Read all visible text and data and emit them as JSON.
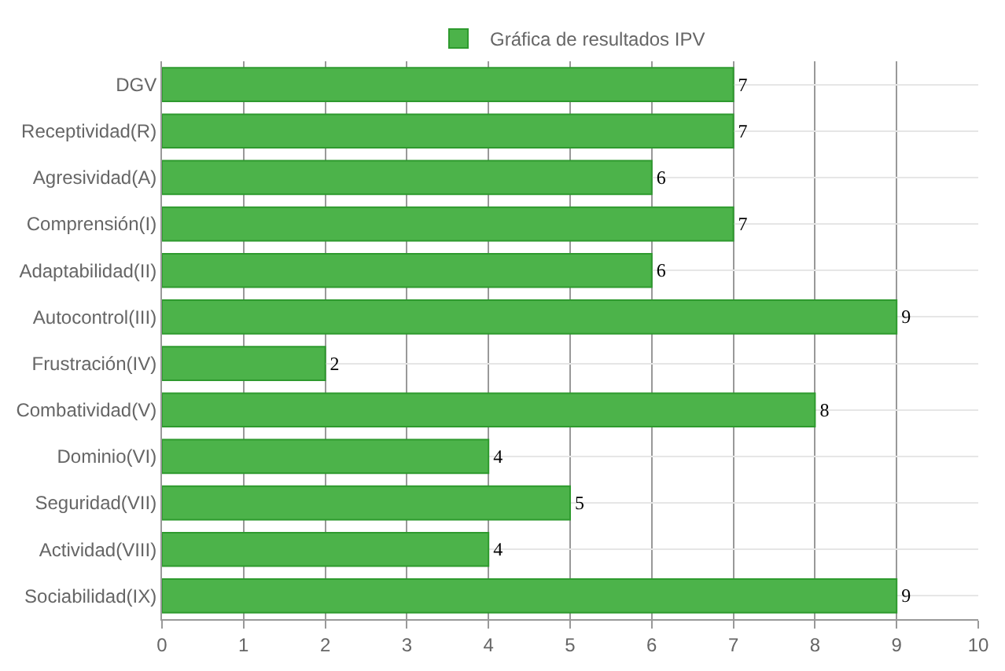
{
  "chart_data": {
    "type": "bar",
    "orientation": "horizontal",
    "categories": [
      "DGV",
      "Receptividad(R)",
      "Agresividad(A)",
      "Comprensión(I)",
      "Adaptabilidad(II)",
      "Autocontrol(III)",
      "Frustración(IV)",
      "Combatividad(V)",
      "Dominio(VI)",
      "Seguridad(VII)",
      "Actividad(VIII)",
      "Sociabilidad(IX)"
    ],
    "series": [
      {
        "name": "Gráfica de resultados IPV",
        "color": "#4cb34a",
        "values": [
          7,
          7,
          6,
          7,
          6,
          9,
          2,
          8,
          4,
          5,
          4,
          9
        ]
      }
    ],
    "xlim": [
      0,
      10
    ],
    "xticks": [
      0,
      1,
      2,
      3,
      4,
      5,
      6,
      7,
      8,
      9,
      10
    ],
    "grid": true,
    "legend": "top",
    "data_labels": true
  }
}
